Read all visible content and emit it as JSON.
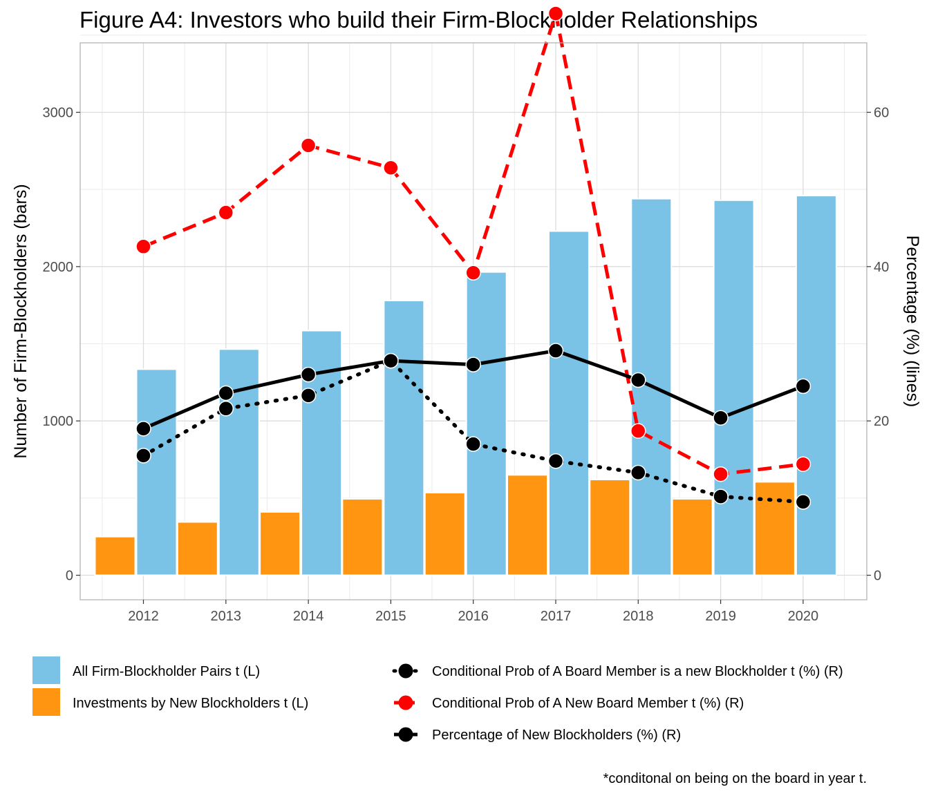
{
  "chart_data": {
    "title": "Figure A4: Investors who build their Firm-Blockholder Relationships",
    "type": "bar",
    "categories": [
      "2012",
      "2013",
      "2014",
      "2015",
      "2016",
      "2017",
      "2018",
      "2019",
      "2020"
    ],
    "xlabel": "",
    "ylabel_left": "Number of Firm-Blockholders (bars)",
    "ylabel_right": "Percentage (%) (lines)",
    "ylim_left": [
      0,
      3600
    ],
    "ylim_right": [
      0,
      72
    ],
    "yticks_left": [
      "0",
      "1000",
      "2000",
      "3000"
    ],
    "yticks_right": [
      "0",
      "20",
      "40",
      "60"
    ],
    "grid": true,
    "legend_position": "bottom",
    "bar_series": [
      {
        "name": "All Firm-Blockholder Pairs t (L)",
        "color": "#7BC3E6",
        "values": [
          1335,
          1465,
          1585,
          1780,
          1965,
          2230,
          2440,
          2430,
          2460
        ]
      },
      {
        "name": "Investments by New Blockholders t (L)",
        "color": "#FF9510",
        "values": [
          250,
          345,
          410,
          495,
          535,
          650,
          620,
          495,
          605
        ]
      }
    ],
    "line_series": [
      {
        "name": "Conditional Prob of A Board Member is a new Blockholder t (%) (R)",
        "color": "#000000",
        "dash": "dotted",
        "values": [
          15.5,
          21.6,
          23.3,
          27.8,
          17.0,
          14.8,
          13.3,
          10.2,
          9.5
        ]
      },
      {
        "name": "Conditional Prob of A New Board Member t (%) (R)",
        "color": "#FF0000",
        "dash": "dashed",
        "values": [
          42.6,
          47.0,
          55.7,
          52.8,
          39.2,
          72.8,
          18.7,
          13.1,
          14.4
        ]
      },
      {
        "name": "Percentage of New Blockholders (%) (R)",
        "color": "#000000",
        "dash": "solid",
        "values": [
          19.0,
          23.6,
          26.0,
          27.8,
          27.3,
          29.1,
          25.3,
          20.4,
          24.5
        ]
      }
    ],
    "caption": "*conditonal on being on the board in year t."
  }
}
